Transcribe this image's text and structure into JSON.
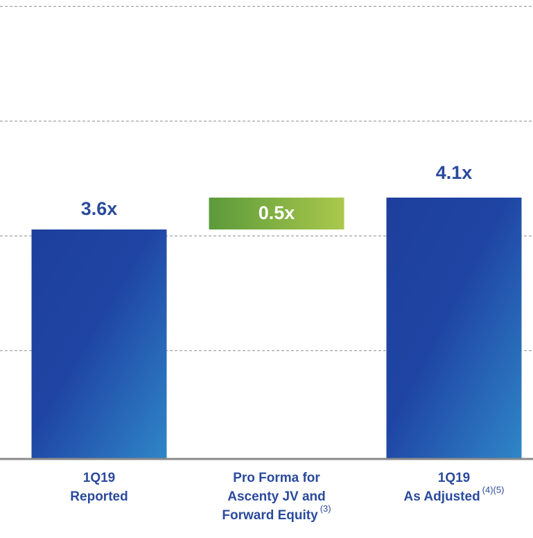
{
  "chart_data": {
    "type": "waterfall",
    "categories": [
      [
        "1Q19",
        "Reported"
      ],
      [
        "Pro Forma for",
        "Ascenty JV and",
        "Forward Equity"
      ],
      [
        "1Q19",
        "As Adjusted"
      ]
    ],
    "category_notes": [
      null,
      "(3)",
      "(4)(5)"
    ],
    "values": [
      3.6,
      0.5,
      4.1
    ],
    "value_labels": [
      "3.6x",
      "0.5x",
      "4.1x"
    ],
    "measure": [
      "absolute",
      "relative",
      "total"
    ],
    "colors": [
      "#2145a3",
      "#7fae3f",
      "#2145a3"
    ],
    "ylim": [
      0,
      7.2
    ],
    "yticks": [
      1.7,
      3.5,
      5.3,
      7.1
    ],
    "grid": true
  }
}
